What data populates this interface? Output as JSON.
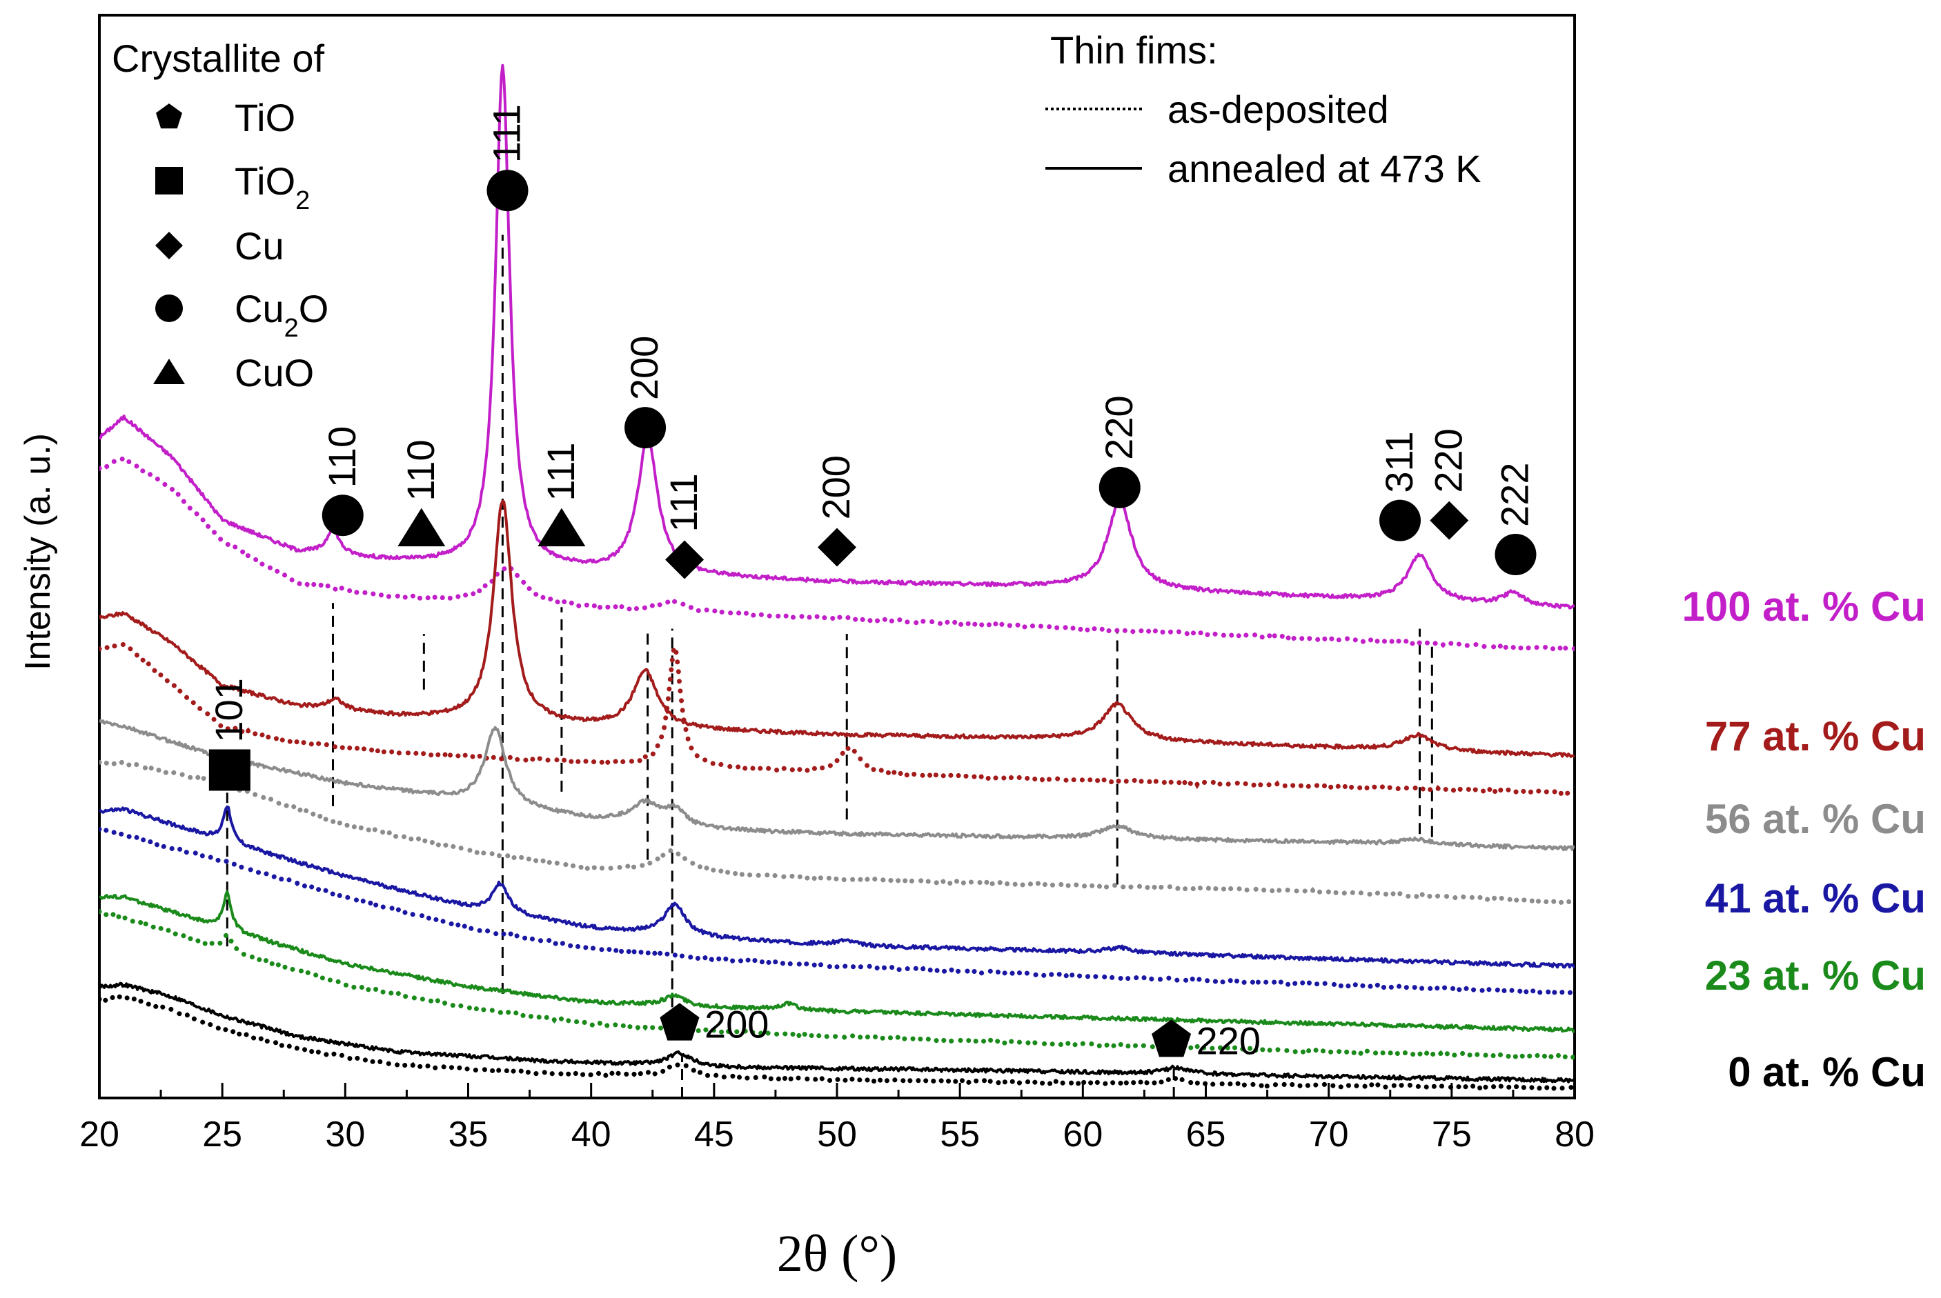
{
  "chart_data": {
    "type": "line",
    "xlabel": "2θ (°)",
    "ylabel": "Intensity (a. u.)",
    "xlim": [
      20,
      80
    ],
    "xticks": [
      "20",
      "25",
      "30",
      "35",
      "40",
      "45",
      "50",
      "55",
      "60",
      "65",
      "70",
      "75",
      "80"
    ],
    "y_ticks": "none",
    "grid": false,
    "legend_symbols": {
      "title": "Crystallite of",
      "placement": "top-left",
      "items": [
        {
          "symbol": "pentagon",
          "label": "TiO",
          "sub": ""
        },
        {
          "symbol": "square",
          "label": "TiO",
          "sub": "2"
        },
        {
          "symbol": "diamond",
          "label": "Cu",
          "sub": ""
        },
        {
          "symbol": "circle",
          "label": "Cu",
          "sub": "2",
          "suffix": "O"
        },
        {
          "symbol": "triangle",
          "label": "CuO",
          "sub": ""
        }
      ]
    },
    "legend_lines": {
      "title": "Thin fims:",
      "placement": "top-right",
      "items": [
        {
          "style": "dotted",
          "label": "as-deposited"
        },
        {
          "style": "solid",
          "label": "annealed at 473 K"
        }
      ]
    },
    "series": [
      {
        "name": "100 at. % Cu",
        "color": "#c21fc9",
        "annealed_baseline": [
          [
            20,
            6.3
          ],
          [
            21,
            6.5
          ],
          [
            23,
            6.1
          ],
          [
            25,
            5.5
          ],
          [
            28,
            5.2
          ],
          [
            32,
            5.1
          ],
          [
            40,
            5.0
          ],
          [
            50,
            4.9
          ],
          [
            60,
            4.85
          ],
          [
            70,
            4.75
          ],
          [
            80,
            4.65
          ]
        ],
        "asdep_baseline": [
          [
            20,
            6.0
          ],
          [
            21,
            6.1
          ],
          [
            23,
            5.8
          ],
          [
            25,
            5.3
          ],
          [
            28,
            4.9
          ],
          [
            32,
            4.75
          ],
          [
            40,
            4.65
          ],
          [
            50,
            4.55
          ],
          [
            60,
            4.45
          ],
          [
            70,
            4.35
          ],
          [
            80,
            4.25
          ]
        ],
        "annealed_peaks": [
          [
            29.5,
            0.25,
            0.3
          ],
          [
            36.4,
            4.85,
            0.35
          ],
          [
            42.3,
            1.3,
            0.5
          ],
          [
            61.5,
            0.85,
            0.6
          ],
          [
            73.7,
            0.45,
            0.6
          ],
          [
            77.5,
            0.12,
            0.5
          ]
        ],
        "asdep_peaks": [
          [
            36.6,
            0.35,
            0.8
          ],
          [
            43.3,
            0.1,
            0.6
          ]
        ]
      },
      {
        "name": "77 at. % Cu",
        "color": "#a31b1b",
        "annealed_baseline": [
          [
            20,
            4.55
          ],
          [
            21,
            4.6
          ],
          [
            23,
            4.3
          ],
          [
            25,
            3.9
          ],
          [
            28,
            3.7
          ],
          [
            32,
            3.6
          ],
          [
            40,
            3.5
          ],
          [
            50,
            3.42
          ],
          [
            60,
            3.38
          ],
          [
            70,
            3.3
          ],
          [
            80,
            3.22
          ]
        ],
        "asdep_baseline": [
          [
            20,
            4.25
          ],
          [
            21,
            4.3
          ],
          [
            23,
            3.9
          ],
          [
            25,
            3.5
          ],
          [
            28,
            3.35
          ],
          [
            32,
            3.25
          ],
          [
            40,
            3.15
          ],
          [
            50,
            3.05
          ],
          [
            60,
            2.98
          ],
          [
            70,
            2.92
          ],
          [
            80,
            2.86
          ]
        ],
        "annealed_peaks": [
          [
            29.6,
            0.1,
            0.4
          ],
          [
            36.4,
            2.15,
            0.45
          ],
          [
            42.2,
            0.55,
            0.6
          ],
          [
            61.4,
            0.35,
            0.7
          ],
          [
            73.6,
            0.15,
            0.7
          ]
        ],
        "asdep_peaks": [
          [
            43.4,
            1.15,
            0.3
          ],
          [
            50.5,
            0.25,
            0.5
          ]
        ]
      },
      {
        "name": "56 at. % Cu",
        "color": "#8c8c8c",
        "annealed_baseline": [
          [
            20,
            3.55
          ],
          [
            21,
            3.5
          ],
          [
            25,
            3.2
          ],
          [
            30,
            2.95
          ],
          [
            35,
            2.78
          ],
          [
            40,
            2.6
          ],
          [
            45,
            2.5
          ],
          [
            50,
            2.46
          ],
          [
            60,
            2.42
          ],
          [
            70,
            2.38
          ],
          [
            80,
            2.32
          ]
        ],
        "asdep_baseline": [
          [
            20,
            3.15
          ],
          [
            21,
            3.15
          ],
          [
            25,
            2.95
          ],
          [
            30,
            2.55
          ],
          [
            35,
            2.3
          ],
          [
            40,
            2.12
          ],
          [
            50,
            2.02
          ],
          [
            60,
            1.96
          ],
          [
            70,
            1.9
          ],
          [
            80,
            1.8
          ]
        ],
        "annealed_peaks": [
          [
            36.1,
            0.75,
            0.5
          ],
          [
            42.2,
            0.2,
            0.7
          ],
          [
            43.4,
            0.15,
            0.5
          ],
          [
            61.4,
            0.12,
            0.8
          ],
          [
            73.5,
            0.05,
            0.8
          ]
        ],
        "asdep_peaks": [
          [
            43.3,
            0.2,
            0.8
          ]
        ]
      },
      {
        "name": "41 at. % Cu",
        "color": "#1a17a3",
        "annealed_baseline": [
          [
            20,
            2.68
          ],
          [
            21,
            2.7
          ],
          [
            25,
            2.4
          ],
          [
            30,
            2.05
          ],
          [
            35,
            1.75
          ],
          [
            40,
            1.55
          ],
          [
            45,
            1.45
          ],
          [
            50,
            1.38
          ],
          [
            60,
            1.32
          ],
          [
            70,
            1.25
          ],
          [
            80,
            1.18
          ]
        ],
        "asdep_baseline": [
          [
            20,
            2.5
          ],
          [
            21,
            2.45
          ],
          [
            25,
            2.2
          ],
          [
            30,
            1.85
          ],
          [
            35,
            1.55
          ],
          [
            40,
            1.35
          ],
          [
            45,
            1.25
          ],
          [
            50,
            1.18
          ],
          [
            60,
            1.08
          ],
          [
            70,
            1.0
          ],
          [
            80,
            0.92
          ]
        ],
        "annealed_peaks": [
          [
            25.2,
            0.35,
            0.2
          ],
          [
            36.3,
            0.28,
            0.4
          ],
          [
            43.4,
            0.3,
            0.5
          ],
          [
            50.3,
            0.05,
            0.5
          ],
          [
            61.5,
            0.05,
            0.6
          ]
        ],
        "asdep_peaks": []
      },
      {
        "name": "23 at. % Cu",
        "color": "#1a8a1a",
        "annealed_baseline": [
          [
            20,
            1.85
          ],
          [
            21,
            1.85
          ],
          [
            25,
            1.55
          ],
          [
            30,
            1.2
          ],
          [
            35,
            0.98
          ],
          [
            40,
            0.83
          ],
          [
            45,
            0.78
          ],
          [
            50,
            0.74
          ],
          [
            60,
            0.68
          ],
          [
            70,
            0.62
          ],
          [
            80,
            0.56
          ]
        ],
        "asdep_baseline": [
          [
            20,
            1.7
          ],
          [
            21,
            1.65
          ],
          [
            25,
            1.35
          ],
          [
            30,
            1.0
          ],
          [
            35,
            0.78
          ],
          [
            40,
            0.62
          ],
          [
            45,
            0.55
          ],
          [
            50,
            0.5
          ],
          [
            60,
            0.42
          ],
          [
            70,
            0.35
          ],
          [
            80,
            0.3
          ]
        ],
        "annealed_peaks": [
          [
            25.2,
            0.35,
            0.2
          ],
          [
            43.4,
            0.1,
            0.5
          ],
          [
            48,
            0.06,
            0.4
          ]
        ],
        "asdep_peaks": [
          [
            25.2,
            0.15,
            0.2
          ]
        ]
      },
      {
        "name": "0 at. % Cu",
        "color": "#000000",
        "annealed_baseline": [
          [
            20,
            0.98
          ],
          [
            21,
            1.0
          ],
          [
            23,
            0.88
          ],
          [
            25,
            0.7
          ],
          [
            28,
            0.5
          ],
          [
            32,
            0.35
          ],
          [
            38,
            0.26
          ],
          [
            45,
            0.2
          ],
          [
            55,
            0.17
          ],
          [
            65,
            0.13
          ],
          [
            80,
            0.07
          ]
        ],
        "asdep_baseline": [
          [
            20,
            0.85
          ],
          [
            21,
            0.88
          ],
          [
            23,
            0.75
          ],
          [
            25,
            0.57
          ],
          [
            28,
            0.38
          ],
          [
            32,
            0.22
          ],
          [
            38,
            0.14
          ],
          [
            45,
            0.1
          ],
          [
            55,
            0.06
          ],
          [
            65,
            0.03
          ],
          [
            80,
            0.0
          ]
        ],
        "annealed_peaks": [
          [
            43.6,
            0.12,
            0.6
          ],
          [
            63.8,
            0.06,
            0.6
          ]
        ],
        "asdep_peaks": [
          [
            43.6,
            0.12,
            0.6
          ],
          [
            63.8,
            0.05,
            0.6
          ]
        ]
      }
    ],
    "y_range": [
      -0.1,
      10.4
    ],
    "reference_lines": [
      {
        "x": 29.5,
        "y_from": 2.73,
        "y_to": 4.7
      },
      {
        "x": 33.2,
        "y_from": 3.86,
        "y_to": 4.4
      },
      {
        "x": 36.4,
        "y_from": 0.91,
        "y_to": 8.27
      },
      {
        "x": 38.8,
        "y_from": 2.87,
        "y_to": 4.66
      },
      {
        "x": 42.3,
        "y_from": 2.21,
        "y_to": 4.45
      },
      {
        "x": 43.3,
        "y_from": 0.78,
        "y_to": 4.45
      },
      {
        "x": 50.4,
        "y_from": 2.6,
        "y_to": 4.4
      },
      {
        "x": 61.4,
        "y_from": 1.97,
        "y_to": 4.43
      },
      {
        "x": 73.7,
        "y_from": 2.46,
        "y_to": 4.45
      },
      {
        "x": 74.2,
        "y_from": 2.43,
        "y_to": 4.33
      },
      {
        "x": 25.2,
        "y_from": 1.37,
        "y_to": 2.86
      },
      {
        "x": 43.7,
        "y_from": -0.1,
        "y_to": 0.3
      },
      {
        "x": 63.7,
        "y_from": -0.1,
        "y_to": 0.22
      }
    ],
    "annotations": [
      {
        "symbol": "circle",
        "x": 29.9,
        "y": 5.55,
        "label": "110"
      },
      {
        "symbol": "triangle",
        "x": 33.1,
        "y": 5.42,
        "label": "110"
      },
      {
        "symbol": "circle",
        "x": 36.6,
        "y": 8.7,
        "label": "111"
      },
      {
        "symbol": "triangle",
        "x": 38.8,
        "y": 5.42,
        "label": "111"
      },
      {
        "symbol": "circle",
        "x": 42.2,
        "y": 6.4,
        "label": "200"
      },
      {
        "symbol": "diamond",
        "x": 43.8,
        "y": 5.12,
        "label": "111"
      },
      {
        "symbol": "diamond",
        "x": 50.0,
        "y": 5.24,
        "label": "200"
      },
      {
        "symbol": "circle",
        "x": 61.5,
        "y": 5.82,
        "label": "220"
      },
      {
        "symbol": "circle",
        "x": 72.9,
        "y": 5.5,
        "label": "311"
      },
      {
        "symbol": "diamond",
        "x": 74.9,
        "y": 5.5,
        "label": "220"
      },
      {
        "symbol": "circle",
        "x": 77.6,
        "y": 5.17,
        "label": "222"
      },
      {
        "symbol": "square",
        "x": 25.3,
        "y": 3.08,
        "label": "101"
      },
      {
        "symbol": "pentagon",
        "x": 43.6,
        "y": 0.62,
        "label": "200"
      },
      {
        "symbol": "pentagon",
        "x": 63.6,
        "y": 0.46,
        "label": "220"
      }
    ]
  }
}
